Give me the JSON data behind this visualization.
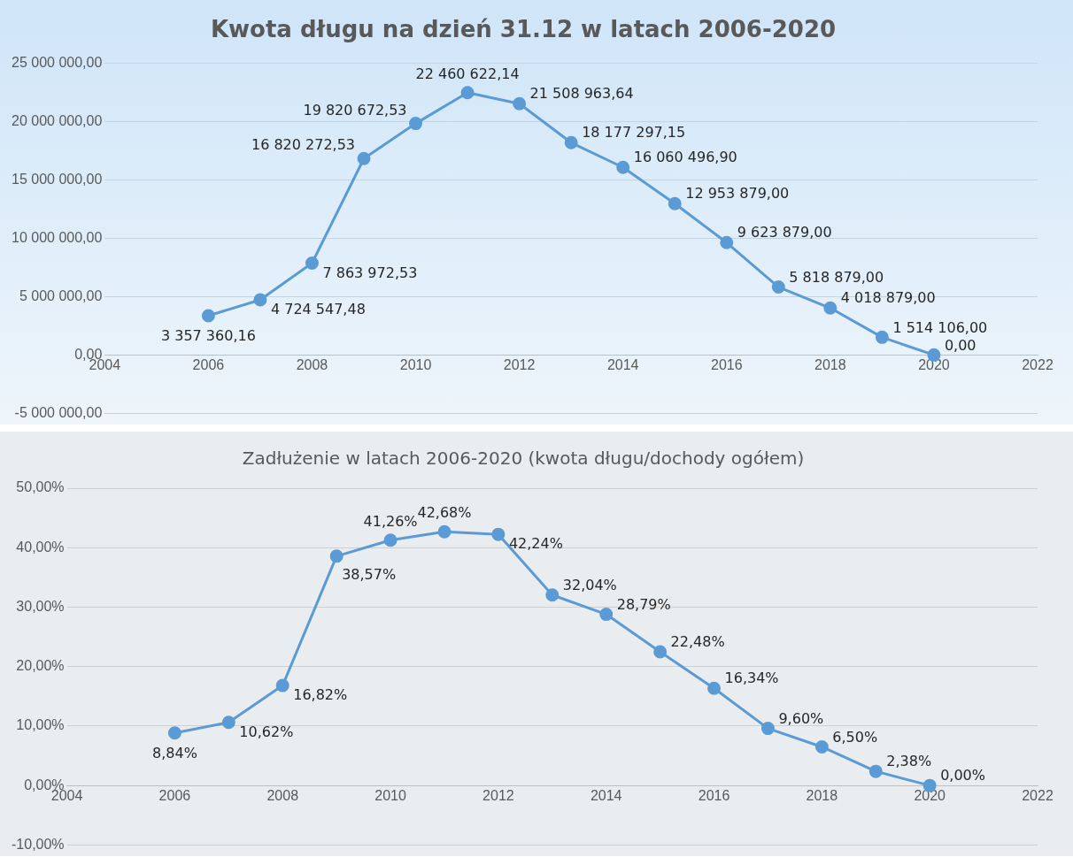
{
  "chart_data": [
    {
      "type": "line",
      "title": "Kwota długu na dzień 31.12 w latach 2006-2020",
      "x": [
        2006,
        2007,
        2008,
        2009,
        2010,
        2011,
        2012,
        2013,
        2014,
        2015,
        2016,
        2017,
        2018,
        2019,
        2020
      ],
      "values": [
        3357360.16,
        4724547.48,
        7863972.53,
        16820272.53,
        19820672.53,
        22460622.14,
        21508963.64,
        18177297.15,
        16060496.9,
        12953879.0,
        9623879.0,
        5818879.0,
        4018879.0,
        1514106.0,
        0.0
      ],
      "value_labels": [
        "3 357 360,16",
        "4 724 547,48",
        "7 863 972,53",
        "16 820 272,53",
        "19 820 672,53",
        "22 460 622,14",
        "21 508 963,64",
        "18 177 297,15",
        "16 060 496,90",
        "12 953 879,00",
        "9 623 879,00",
        "5 818 879,00",
        "4 018 879,00",
        "1 514 106,00",
        "0,00"
      ],
      "color": "#5b9bd5",
      "marker": "circle",
      "grid": "y",
      "xlim": [
        2004,
        2022
      ],
      "xticks": [
        2004,
        2006,
        2008,
        2010,
        2012,
        2014,
        2016,
        2018,
        2020,
        2022
      ],
      "ylim": [
        -5000000,
        25000000
      ],
      "yticks": [
        {
          "value": -5000000,
          "label": "-5 000 000,00"
        },
        {
          "value": 0,
          "label": "0,00"
        },
        {
          "value": 5000000,
          "label": "5 000 000,00"
        },
        {
          "value": 10000000,
          "label": "10 000 000,00"
        },
        {
          "value": 15000000,
          "label": "15 000 000,00"
        },
        {
          "value": 20000000,
          "label": "20 000 000,00"
        },
        {
          "value": 25000000,
          "label": "25 000 000,00"
        }
      ]
    },
    {
      "type": "line",
      "title": "Zadłużenie w latach 2006-2020 (kwota długu/dochody ogółem)",
      "x": [
        2006,
        2007,
        2008,
        2009,
        2010,
        2011,
        2012,
        2013,
        2014,
        2015,
        2016,
        2017,
        2018,
        2019,
        2020
      ],
      "values": [
        8.84,
        10.62,
        16.82,
        38.57,
        41.26,
        42.68,
        42.24,
        32.04,
        28.79,
        22.48,
        16.34,
        9.6,
        6.5,
        2.38,
        0.0
      ],
      "value_labels": [
        "8,84%",
        "10,62%",
        "16,82%",
        "38,57%",
        "41,26%",
        "42,68%",
        "42,24%",
        "32,04%",
        "28,79%",
        "22,48%",
        "16,34%",
        "9,60%",
        "6,50%",
        "2,38%",
        "0,00%"
      ],
      "color": "#5b9bd5",
      "marker": "circle",
      "grid": "y",
      "xlim": [
        2004,
        2022
      ],
      "xticks": [
        2004,
        2006,
        2008,
        2010,
        2012,
        2014,
        2016,
        2018,
        2020,
        2022
      ],
      "ylim": [
        -10,
        50
      ],
      "yticks": [
        {
          "value": -10,
          "label": "-10,00%"
        },
        {
          "value": 0,
          "label": "0,00%"
        },
        {
          "value": 10,
          "label": "10,00%"
        },
        {
          "value": 20,
          "label": "20,00%"
        },
        {
          "value": 30,
          "label": "30,00%"
        },
        {
          "value": 40,
          "label": "40,00%"
        },
        {
          "value": 50,
          "label": "50,00%"
        }
      ]
    }
  ]
}
